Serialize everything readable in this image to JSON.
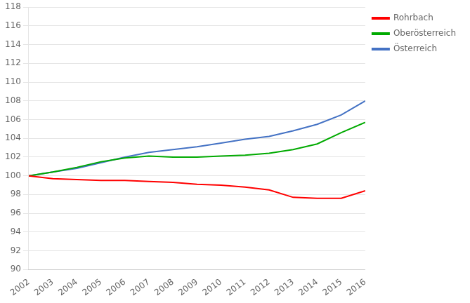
{
  "chart_data": {
    "type": "line",
    "x": [
      2002,
      2003,
      2004,
      2005,
      2006,
      2007,
      2008,
      2009,
      2010,
      2011,
      2012,
      2013,
      2014,
      2015,
      2016
    ],
    "xlim": [
      2002,
      2016
    ],
    "xticks": [
      2002,
      2003,
      2004,
      2005,
      2006,
      2007,
      2008,
      2009,
      2010,
      2011,
      2012,
      2013,
      2014,
      2015,
      2016
    ],
    "ylim": [
      90,
      118
    ],
    "yticks": [
      90,
      92,
      94,
      96,
      98,
      100,
      102,
      104,
      106,
      108,
      110,
      112,
      114,
      116,
      118
    ],
    "grid": "y",
    "legend": "right",
    "series": [
      {
        "name": "Rohrbach",
        "color": "#FF0000",
        "values": [
          100.0,
          99.7,
          99.6,
          99.5,
          99.5,
          99.4,
          99.3,
          99.1,
          99.0,
          98.8,
          98.5,
          97.7,
          97.6,
          97.6,
          98.4
        ]
      },
      {
        "name": "Oberösterreich",
        "color": "#00AA00",
        "values": [
          100.0,
          100.4,
          100.9,
          101.5,
          101.9,
          102.1,
          102.0,
          102.0,
          102.1,
          102.2,
          102.4,
          102.8,
          103.4,
          104.6,
          105.7
        ]
      },
      {
        "name": "Österreich",
        "color": "#4472C4",
        "values": [
          100.0,
          100.4,
          100.8,
          101.4,
          102.0,
          102.5,
          102.8,
          103.1,
          103.5,
          103.9,
          104.2,
          104.8,
          105.5,
          106.5,
          108.0
        ]
      }
    ]
  }
}
